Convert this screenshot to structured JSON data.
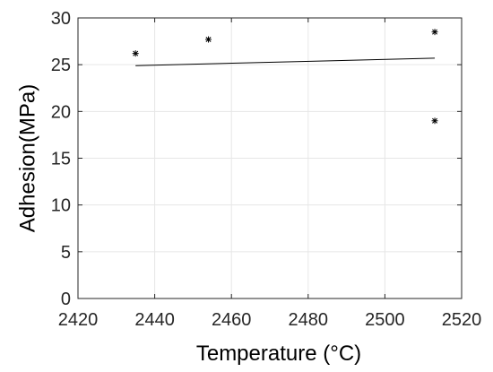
{
  "chart_data": {
    "type": "scatter",
    "title": "",
    "xlabel": "Temperature (°C)",
    "ylabel": "Adhesion(MPa)",
    "xlim": [
      2420,
      2520
    ],
    "ylim": [
      0,
      30
    ],
    "xticks": [
      "2420",
      "2440",
      "2460",
      "2480",
      "2500",
      "2520"
    ],
    "yticks": [
      "0",
      "5",
      "10",
      "15",
      "20",
      "25",
      "30"
    ],
    "grid": true,
    "series": [
      {
        "type": "scatter",
        "marker": "asterisk",
        "color": "#000000",
        "points": [
          {
            "x": 2435,
            "y": 26.2
          },
          {
            "x": 2454,
            "y": 27.7
          },
          {
            "x": 2513,
            "y": 28.5
          },
          {
            "x": 2513,
            "y": 19.0
          }
        ]
      },
      {
        "type": "line",
        "color": "#000000",
        "points": [
          {
            "x": 2435,
            "y": 24.9
          },
          {
            "x": 2513,
            "y": 25.7
          }
        ]
      }
    ]
  }
}
